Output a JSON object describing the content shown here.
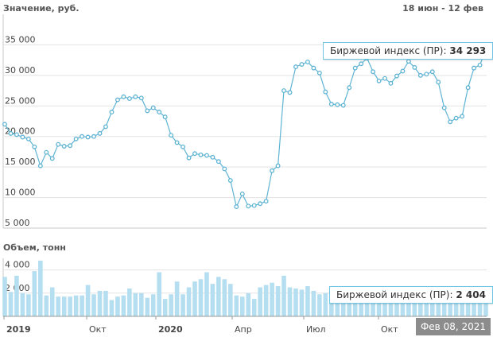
{
  "header": {
    "price_title": "Значение, руб.",
    "period": "18 июн - 12 фев",
    "volume_title": "Объем, тонн"
  },
  "tooltip_price": {
    "label": "Биржевой индекс (ПР):",
    "value": "34 293"
  },
  "tooltip_volume": {
    "label": "Биржевой индекс (ПР):",
    "value": "2 404"
  },
  "date_badge": "Фев 08, 2021",
  "colors": {
    "line": "#5fb4d3",
    "marker_fill": "#ffffff",
    "bar": "#b5dff0",
    "grid": "#e3e3e3",
    "tip_border": "#6ec6e6"
  },
  "chart_data": [
    {
      "type": "line",
      "title": "Значение, руб.",
      "ylim": [
        5000,
        40000
      ],
      "yticks": [
        "5 000",
        "10 000",
        "15 000",
        "20 000",
        "25 000",
        "30 000",
        "35 000"
      ],
      "x_axis_labels": [
        "2019",
        "Окт",
        "2020",
        "Апр",
        "Июл",
        "Окт"
      ],
      "series": [
        {
          "values": [
            22000,
            20500,
            20300,
            19900,
            19600,
            18300,
            15200,
            17400,
            16400,
            18700,
            18400,
            18500,
            19600,
            20000,
            19900,
            20000,
            20500,
            21600,
            24000,
            26000,
            26500,
            26200,
            26500,
            26300,
            24200,
            24700,
            24000,
            23200,
            20200,
            19000,
            18300,
            16500,
            17200,
            17000,
            16900,
            16600,
            15900,
            14700,
            12800,
            8500,
            10600,
            8600,
            8700,
            9000,
            9400,
            14400,
            15200,
            27500,
            27200,
            31400,
            31800,
            32200,
            31200,
            30400,
            27300,
            25300,
            25200,
            25100,
            28000,
            31200,
            31900,
            32800,
            30600,
            29100,
            29500,
            28700,
            29900,
            30700,
            32300,
            31300,
            30000,
            30200,
            30600,
            28900,
            24700,
            22400,
            23000,
            23300,
            28000,
            31200,
            31700,
            34293
          ]
        }
      ]
    },
    {
      "type": "bar",
      "title": "Объем, тонн",
      "ylim": [
        0,
        5000
      ],
      "yticks": [
        "2 000",
        "4 000"
      ],
      "series": [
        {
          "values": [
            3400,
            2100,
            3500,
            2000,
            1900,
            3900,
            4800,
            1800,
            2500,
            1700,
            1700,
            1700,
            1800,
            1800,
            2700,
            1900,
            2200,
            2200,
            1400,
            1700,
            1800,
            2400,
            2000,
            2000,
            1600,
            1900,
            3800,
            1500,
            1900,
            3000,
            1900,
            2500,
            3000,
            3200,
            3800,
            2800,
            3400,
            3200,
            2800,
            1800,
            1700,
            2000,
            1500,
            2500,
            2700,
            2900,
            2600,
            3500,
            2500,
            2400,
            2300,
            2600,
            2200,
            1900,
            2000,
            2000,
            2200,
            2000,
            2300,
            2400,
            2300,
            2400,
            2400,
            2200,
            2400,
            2300,
            2400,
            2300,
            2400,
            2300,
            2400,
            2300,
            2300,
            2300,
            2400,
            2300,
            2300,
            2200,
            2300,
            2400,
            2400,
            2404
          ]
        }
      ]
    }
  ]
}
